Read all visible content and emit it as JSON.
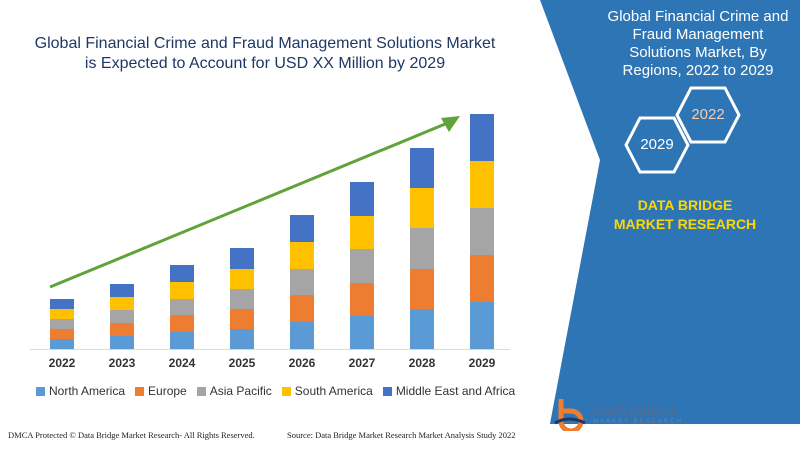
{
  "title": "Global Financial Crime and Fraud Management Solutions Market is Expected to Account for USD XX Million by 2029",
  "right_panel": {
    "title": "Global Financial Crime and Fraud Management Solutions Market, By Regions, 2022 to 2029",
    "hex_labels": [
      "2022",
      "2029"
    ],
    "brand": "DATA BRIDGE MARKET RESEARCH",
    "logo_text": "DATA BRIDGE",
    "logo_sub": "MARKET RESEARCH",
    "color": "#2e75b6"
  },
  "footer": {
    "left": "DMCA Protected © Data Bridge Market Research- All Rights Reserved.",
    "right": "Source: Data Bridge Market Research Market Analysis Study 2022"
  },
  "chart_data": {
    "type": "bar",
    "stacked": true,
    "title": "Global Financial Crime and Fraud Management Solutions Market is Expected to Account for USD XX Million by 2029",
    "categories": [
      "2022",
      "2023",
      "2024",
      "2025",
      "2026",
      "2027",
      "2028",
      "2029"
    ],
    "series": [
      {
        "name": "North America",
        "color": "#5b9bd5",
        "values": [
          10,
          13,
          17,
          20,
          27,
          33,
          40,
          47
        ]
      },
      {
        "name": "Europe",
        "color": "#ed7d31",
        "values": [
          10,
          13,
          17,
          20,
          27,
          33,
          40,
          47
        ]
      },
      {
        "name": "Asia Pacific",
        "color": "#a5a5a5",
        "values": [
          10,
          13,
          16,
          20,
          26,
          34,
          41,
          47
        ]
      },
      {
        "name": "South America",
        "color": "#ffc000",
        "values": [
          10,
          13,
          17,
          20,
          27,
          33,
          40,
          47
        ]
      },
      {
        "name": "Middle East and Africa",
        "color": "#4472c4",
        "values": [
          10,
          13,
          17,
          21,
          27,
          34,
          40,
          47
        ]
      }
    ],
    "trend_arrow_color": "#5fa33a",
    "legend_position": "bottom",
    "grid": false
  }
}
